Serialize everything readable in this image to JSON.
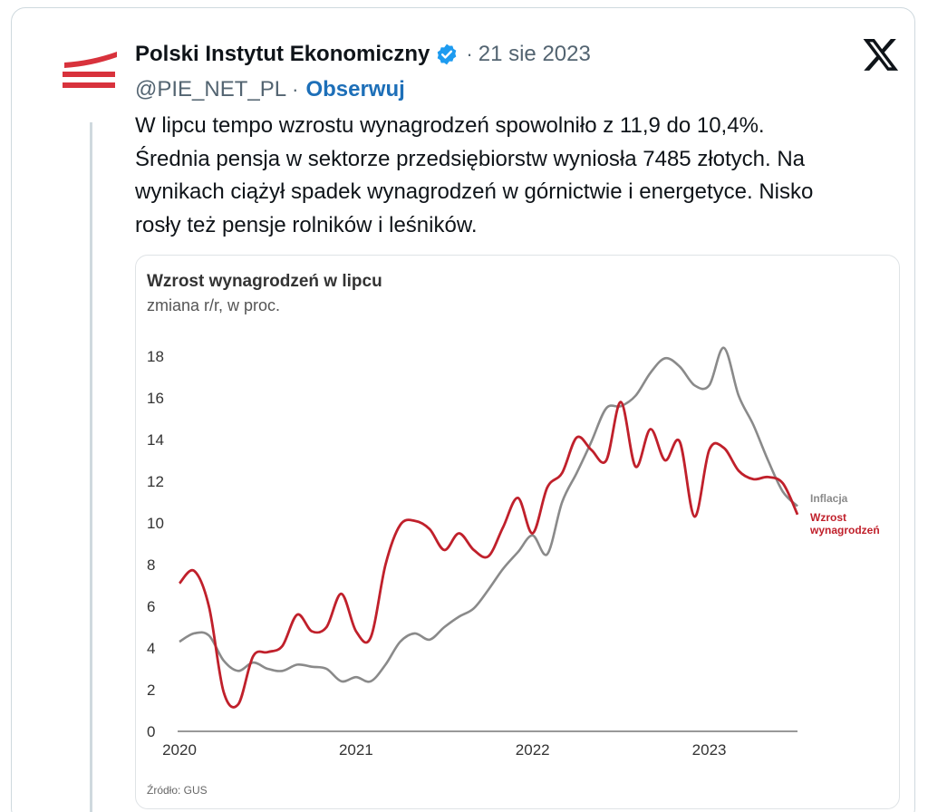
{
  "tweet": {
    "author_name": "Polski Instytut Ekonomiczny",
    "date": "21 sie 2023",
    "handle": "@PIE_NET_PL",
    "follow_label": "Obserwuj",
    "text_lines": [
      "W lipcu tempo wzrostu wynagrodzeń spowolniło z 11,9 do 10,4%.",
      "Średnia pensja w sektorze przedsiębiorstw wyniosła 7485 złotych. Na",
      "wynikach ciążył spadek wynagrodzeń w górnictwie i energetyce. Nisko",
      "rosły też pensje rolników i leśników."
    ],
    "separator": "·"
  },
  "icons": {
    "verified": "verified-badge-icon",
    "platform": "x-logo-icon",
    "avatar": "pie-logo"
  },
  "colors": {
    "wages": "#c0202b",
    "inflation": "#8a8a8a",
    "verified": "#1d9bf0",
    "link": "#1d6fb8",
    "logo": "#d8323c"
  },
  "chart_data": {
    "type": "line",
    "title": "Wzrost wynagrodzeń w lipcu",
    "subtitle": "zmiana r/r, w proc.",
    "source": "Źródło: GUS",
    "ylim": [
      0,
      18
    ],
    "yticks": [
      "0",
      "2",
      "4",
      "6",
      "8",
      "10",
      "12",
      "14",
      "16",
      "18"
    ],
    "xlim": [
      2020,
      2023.5
    ],
    "xticks": [
      "2020",
      "2021",
      "2022",
      "2023"
    ],
    "grid": false,
    "legend": "right-end labels",
    "series": [
      {
        "name": "Inflacja",
        "color": "#8a8a8a",
        "x": [
          2020.0,
          2020.083,
          2020.167,
          2020.25,
          2020.333,
          2020.417,
          2020.5,
          2020.583,
          2020.667,
          2020.75,
          2020.833,
          2020.917,
          2021.0,
          2021.083,
          2021.167,
          2021.25,
          2021.333,
          2021.417,
          2021.5,
          2021.583,
          2021.667,
          2021.75,
          2021.833,
          2021.917,
          2022.0,
          2022.083,
          2022.167,
          2022.25,
          2022.333,
          2022.417,
          2022.5,
          2022.583,
          2022.667,
          2022.75,
          2022.833,
          2022.917,
          2023.0,
          2023.083,
          2023.167,
          2023.25,
          2023.333,
          2023.417,
          2023.5
        ],
        "values": [
          4.3,
          4.7,
          4.6,
          3.4,
          2.9,
          3.3,
          3.0,
          2.9,
          3.2,
          3.1,
          3.0,
          2.4,
          2.6,
          2.4,
          3.2,
          4.3,
          4.7,
          4.4,
          5.0,
          5.5,
          5.9,
          6.8,
          7.8,
          8.6,
          9.4,
          8.5,
          11.0,
          12.4,
          13.9,
          15.5,
          15.6,
          16.1,
          17.2,
          17.9,
          17.5,
          16.6,
          16.6,
          18.4,
          16.1,
          14.7,
          13.0,
          11.5,
          10.8
        ]
      },
      {
        "name": "Wzrost wynagrodzeń",
        "color": "#c0202b",
        "x": [
          2020.0,
          2020.083,
          2020.167,
          2020.25,
          2020.333,
          2020.417,
          2020.5,
          2020.583,
          2020.667,
          2020.75,
          2020.833,
          2020.917,
          2021.0,
          2021.083,
          2021.167,
          2021.25,
          2021.333,
          2021.417,
          2021.5,
          2021.583,
          2021.667,
          2021.75,
          2021.833,
          2021.917,
          2022.0,
          2022.083,
          2022.167,
          2022.25,
          2022.333,
          2022.417,
          2022.5,
          2022.583,
          2022.667,
          2022.75,
          2022.833,
          2022.917,
          2023.0,
          2023.083,
          2023.167,
          2023.25,
          2023.333,
          2023.417,
          2023.5
        ],
        "values": [
          7.1,
          7.7,
          6.0,
          1.9,
          1.3,
          3.6,
          3.8,
          4.1,
          5.6,
          4.8,
          5.0,
          6.6,
          4.8,
          4.5,
          8.0,
          9.9,
          10.1,
          9.7,
          8.7,
          9.5,
          8.7,
          8.4,
          9.8,
          11.2,
          9.5,
          11.7,
          12.4,
          14.1,
          13.5,
          13.0,
          15.8,
          12.7,
          14.5,
          13.0,
          13.9,
          10.3,
          13.5,
          13.6,
          12.5,
          12.1,
          12.2,
          11.9,
          10.4
        ]
      }
    ]
  }
}
